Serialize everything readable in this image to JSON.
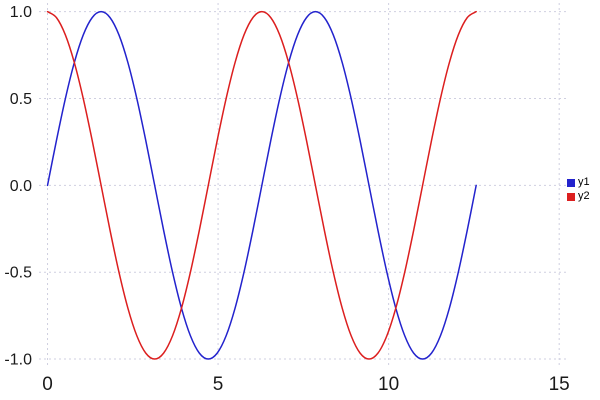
{
  "chart_data": {
    "type": "line",
    "title": "",
    "xlabel": "",
    "ylabel": "",
    "grid": true,
    "grid_color": "#cfcfe0",
    "background_color": "#ffffff",
    "tick_label_color": "#1a1a1a",
    "legend_position": "outside-right",
    "xlim": [
      -0.25,
      15.2
    ],
    "ylim": [
      -1.04,
      1.05
    ],
    "x_ticks": {
      "values": [
        0,
        5,
        10,
        15
      ],
      "labels": [
        "0",
        "5",
        "10",
        "15"
      ]
    },
    "y_ticks": {
      "values": [
        1.0,
        0.5,
        0.0,
        -0.5,
        -1.0
      ],
      "labels": [
        "1.0",
        "0.5",
        "0.0",
        "-0.5",
        "-1.0"
      ]
    },
    "x": [
      0,
      0.2618,
      0.5236,
      0.7854,
      1.0472,
      1.309,
      1.5708,
      1.8326,
      2.0944,
      2.3562,
      2.618,
      2.8798,
      3.1416,
      3.4034,
      3.6652,
      3.927,
      4.1888,
      4.4506,
      4.7124,
      4.9742,
      5.236,
      5.4978,
      5.7596,
      6.0214,
      6.2832,
      6.545,
      6.8068,
      7.0686,
      7.3304,
      7.5922,
      7.854,
      8.1158,
      8.3776,
      8.6394,
      8.9012,
      9.163,
      9.4248,
      9.6866,
      9.9484,
      10.2102,
      10.472,
      10.7338,
      10.9956,
      11.2574,
      11.5192,
      11.781,
      12.0428,
      12.3046,
      12.5664
    ],
    "series": [
      {
        "name": "y1",
        "color": "#2323cd",
        "values": [
          0,
          0.2588,
          0.5,
          0.7071,
          0.866,
          0.9659,
          1,
          0.9659,
          0.866,
          0.7071,
          0.5,
          0.2588,
          0,
          -0.2588,
          -0.5,
          -0.7071,
          -0.866,
          -0.9659,
          -1,
          -0.9659,
          -0.866,
          -0.7071,
          -0.5,
          -0.2588,
          0,
          0.2588,
          0.5,
          0.7071,
          0.866,
          0.9659,
          1,
          0.9659,
          0.866,
          0.7071,
          0.5,
          0.2588,
          0,
          -0.2588,
          -0.5,
          -0.7071,
          -0.866,
          -0.9659,
          -1,
          -0.9659,
          -0.866,
          -0.7071,
          -0.5,
          -0.2588,
          0
        ]
      },
      {
        "name": "y2",
        "color": "#dc1f1f",
        "values": [
          1,
          0.9659,
          0.866,
          0.7071,
          0.5,
          0.2588,
          0,
          -0.2588,
          -0.5,
          -0.7071,
          -0.866,
          -0.9659,
          -1,
          -0.9659,
          -0.866,
          -0.7071,
          -0.5,
          -0.2588,
          0,
          0.2588,
          0.5,
          0.7071,
          0.866,
          0.9659,
          1,
          0.9659,
          0.866,
          0.7071,
          0.5,
          0.2588,
          0,
          -0.2588,
          -0.5,
          -0.7071,
          -0.866,
          -0.9659,
          -1,
          -0.9659,
          -0.866,
          -0.7071,
          -0.5,
          -0.2588,
          0,
          0.2588,
          0.5,
          0.7071,
          0.866,
          0.9659,
          1
        ]
      }
    ]
  }
}
